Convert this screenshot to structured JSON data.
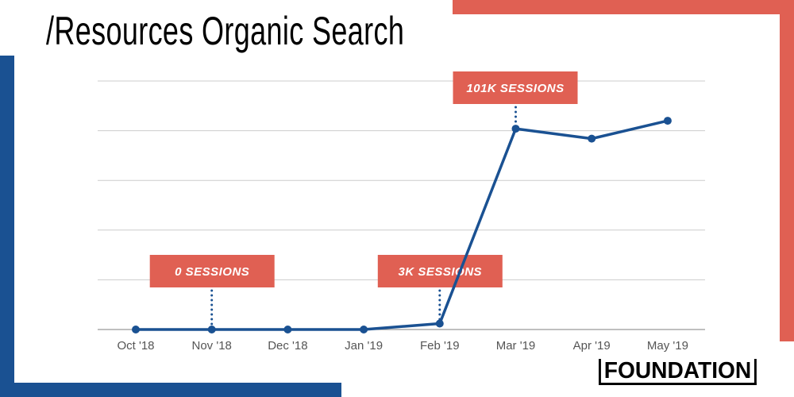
{
  "title": "/Resources Organic Search",
  "logo": "FOUNDATION",
  "colors": {
    "accent_red": "#e06053",
    "accent_blue": "#1a5192",
    "line": "#1a5192",
    "grid": "#cccccc"
  },
  "chart_data": {
    "type": "line",
    "title": "/Resources Organic Search",
    "categories": [
      "Oct '18",
      "Nov '18",
      "Dec '18",
      "Jan '19",
      "Feb '19",
      "Mar '19",
      "Apr '19",
      "May '19"
    ],
    "values": [
      0,
      0,
      0,
      0,
      3000,
      101000,
      96000,
      105000
    ],
    "ylim": [
      0,
      125000
    ],
    "y_ticks_labeled": false,
    "grid": true,
    "annotations": [
      {
        "category": "Nov '18",
        "value": 0,
        "label": "0 SESSIONS"
      },
      {
        "category": "Feb '19",
        "value": 3000,
        "label": "3K SESSIONS"
      },
      {
        "category": "Mar '19",
        "value": 101000,
        "label": "101K SESSIONS"
      }
    ]
  }
}
